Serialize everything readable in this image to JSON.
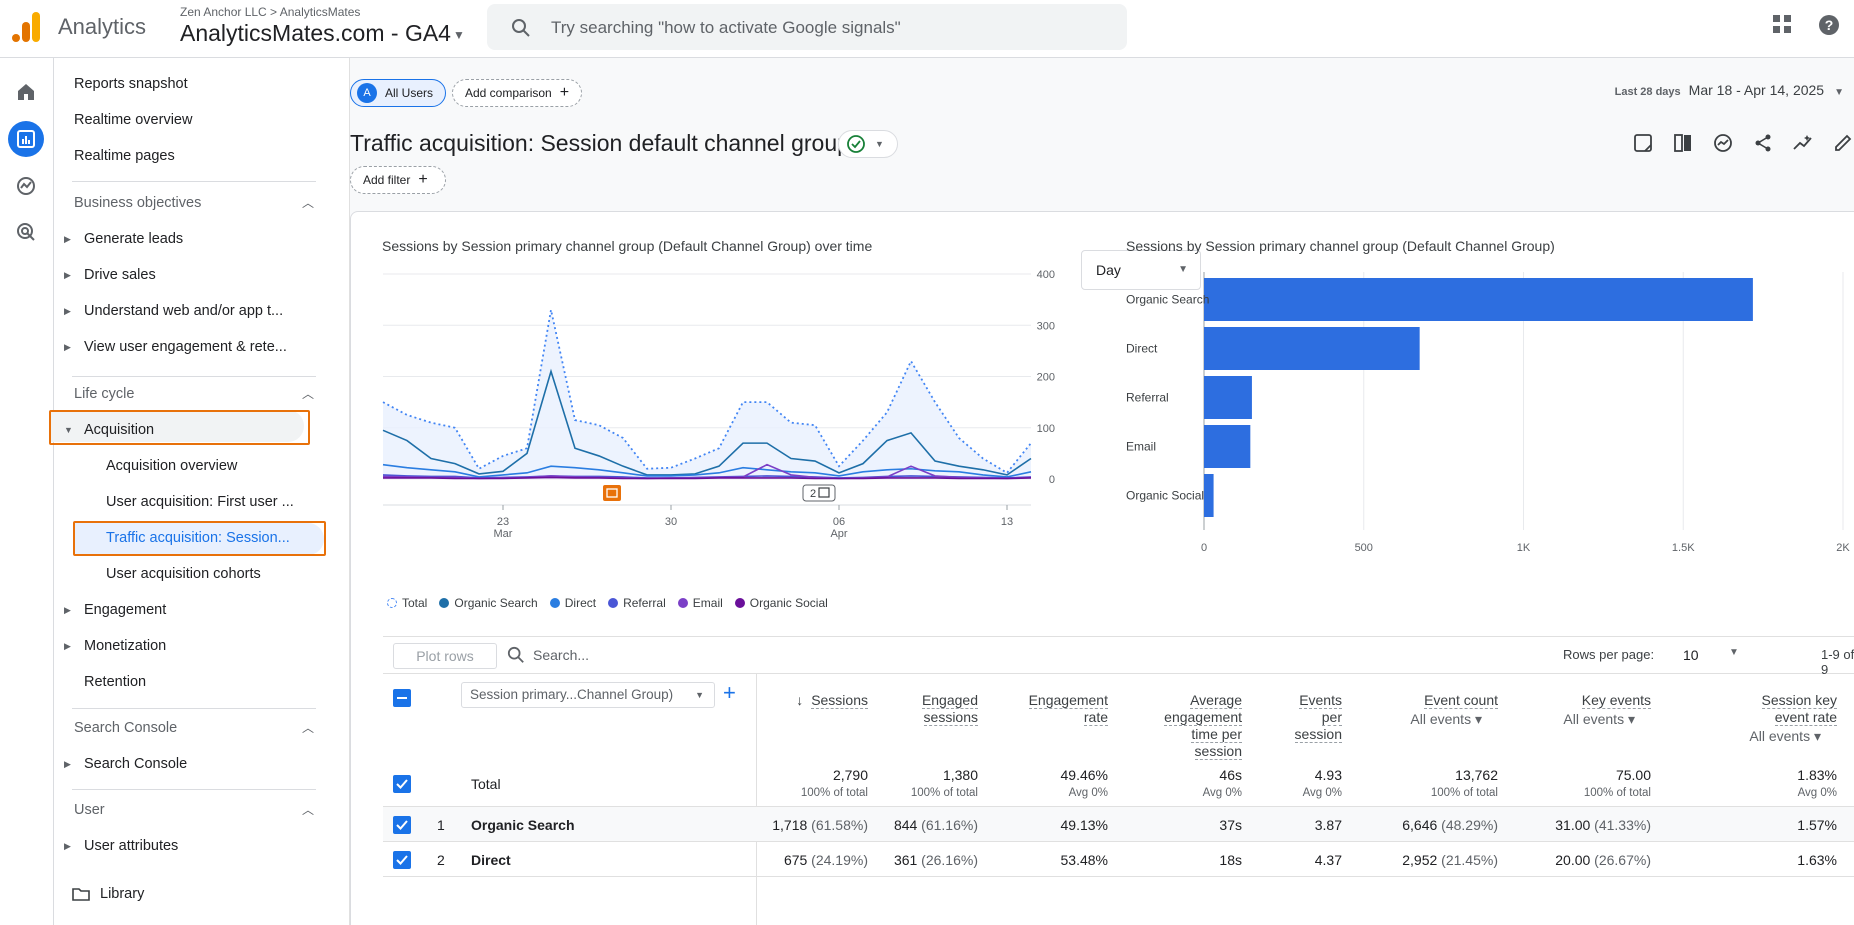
{
  "header": {
    "app_name": "Analytics",
    "account_path": "Zen Anchor LLC > AnalyticsMates",
    "property_name": "AnalyticsMates.com - GA4",
    "search_placeholder": "Try searching \"how to activate Google signals\""
  },
  "nav": {
    "top_items": [
      "Reports snapshot",
      "Realtime overview",
      "Realtime pages"
    ],
    "business_objectives": {
      "label": "Business objectives",
      "items": [
        "Generate leads",
        "Drive sales",
        "Understand web and/or app t...",
        "View user engagement & rete..."
      ]
    },
    "life_cycle": {
      "label": "Life cycle",
      "acquisition": "Acquisition",
      "acquisition_children": [
        "Acquisition overview",
        "User acquisition: First user ...",
        "Traffic acquisition: Session...",
        "User acquisition cohorts"
      ],
      "others": [
        "Engagement",
        "Monetization",
        "Retention"
      ]
    },
    "search_console": {
      "label": "Search Console",
      "items": [
        "Search Console"
      ]
    },
    "user": {
      "label": "User",
      "items": [
        "User attributes"
      ]
    },
    "library": "Library"
  },
  "toolbar": {
    "segment_avatar": "A",
    "segment_label": "All Users",
    "add_comparison": "Add comparison",
    "date_label": "Last 28 days",
    "date_range": "Mar 18 - Apr 14, 2025",
    "page_title": "Traffic acquisition: Session default channel group",
    "add_filter": "Add filter"
  },
  "line_chart": {
    "title": "Sessions by Session primary channel group (Default Channel Group) over time",
    "granularity": "Day",
    "y_ticks": [
      "400",
      "300",
      "200",
      "100",
      "0"
    ],
    "x_ticks": [
      {
        "d": "23",
        "m": "Mar"
      },
      {
        "d": "30",
        "m": ""
      },
      {
        "d": "06",
        "m": "Apr"
      },
      {
        "d": "13",
        "m": ""
      }
    ],
    "annotation_count": "2",
    "legend": [
      "Total",
      "Organic Search",
      "Direct",
      "Referral",
      "Email",
      "Organic Social"
    ]
  },
  "bar_chart": {
    "title": "Sessions by Session primary channel group (Default Channel Group)",
    "x_ticks": [
      "0",
      "500",
      "1K",
      "1.5K",
      "2K"
    ]
  },
  "colors": {
    "total": "#4285f4",
    "organic_search": "#1e6fa8",
    "direct": "#2a7de1",
    "referral": "#4a56d6",
    "email": "#7b3fc7",
    "organic_social": "#6a0f9a",
    "bar": "#2d6ee0",
    "highlight": "#e8710a"
  },
  "chart_data": [
    {
      "type": "line",
      "title": "Sessions by Session primary channel group (Default Channel Group) over time",
      "x": [
        "Mar 18",
        "Mar 19",
        "Mar 20",
        "Mar 21",
        "Mar 22",
        "Mar 23",
        "Mar 24",
        "Mar 25",
        "Mar 26",
        "Mar 27",
        "Mar 28",
        "Mar 29",
        "Mar 30",
        "Mar 31",
        "Apr 1",
        "Apr 2",
        "Apr 3",
        "Apr 4",
        "Apr 5",
        "Apr 6",
        "Apr 7",
        "Apr 8",
        "Apr 9",
        "Apr 10",
        "Apr 11",
        "Apr 12",
        "Apr 13",
        "Apr 14"
      ],
      "ylim": [
        0,
        400
      ],
      "series": [
        {
          "name": "Total",
          "values": [
            150,
            125,
            110,
            100,
            20,
            45,
            60,
            330,
            115,
            105,
            80,
            20,
            22,
            40,
            60,
            150,
            150,
            110,
            105,
            25,
            75,
            130,
            230,
            150,
            80,
            40,
            12,
            70
          ]
        },
        {
          "name": "Organic Search",
          "values": [
            95,
            75,
            40,
            30,
            10,
            15,
            50,
            210,
            60,
            45,
            25,
            8,
            8,
            10,
            25,
            70,
            70,
            40,
            35,
            12,
            30,
            75,
            90,
            35,
            25,
            18,
            8,
            40
          ]
        },
        {
          "name": "Direct",
          "values": [
            28,
            22,
            18,
            14,
            4,
            8,
            12,
            25,
            22,
            18,
            12,
            6,
            6,
            8,
            12,
            22,
            18,
            14,
            12,
            6,
            14,
            18,
            20,
            16,
            14,
            8,
            4,
            14
          ]
        },
        {
          "name": "Referral",
          "values": [
            8,
            6,
            5,
            5,
            2,
            3,
            4,
            6,
            5,
            5,
            4,
            2,
            2,
            3,
            4,
            5,
            6,
            5,
            4,
            2,
            3,
            5,
            6,
            5,
            4,
            3,
            2,
            4
          ]
        },
        {
          "name": "Email",
          "values": [
            5,
            4,
            3,
            3,
            1,
            2,
            3,
            6,
            4,
            3,
            2,
            1,
            2,
            2,
            3,
            4,
            28,
            8,
            3,
            1,
            2,
            4,
            25,
            6,
            3,
            2,
            1,
            3
          ]
        },
        {
          "name": "Organic Social",
          "values": [
            2,
            2,
            2,
            1,
            1,
            1,
            2,
            3,
            2,
            2,
            1,
            1,
            1,
            1,
            2,
            2,
            2,
            2,
            1,
            1,
            1,
            2,
            2,
            2,
            1,
            1,
            1,
            2
          ]
        }
      ]
    },
    {
      "type": "bar",
      "title": "Sessions by Session primary channel group (Default Channel Group)",
      "categories": [
        "Organic Search",
        "Direct",
        "Referral",
        "Email",
        "Organic Social"
      ],
      "values": [
        1718,
        675,
        150,
        145,
        30
      ],
      "xlim": [
        0,
        2000
      ]
    }
  ],
  "table": {
    "plot_rows": "Plot rows",
    "search_placeholder": "Search...",
    "rows_per_page_label": "Rows per page:",
    "rows_per_page": "10",
    "pagination": "1-9 of 9",
    "dimension": "Session primary...Channel Group)",
    "columns": [
      {
        "lines": [
          "Sessions"
        ],
        "sub": ""
      },
      {
        "lines": [
          "Engaged",
          "sessions"
        ],
        "sub": ""
      },
      {
        "lines": [
          "Engagement",
          "rate"
        ],
        "sub": ""
      },
      {
        "lines": [
          "Average",
          "engagement",
          "time per",
          "session"
        ],
        "sub": ""
      },
      {
        "lines": [
          "Events",
          "per",
          "session"
        ],
        "sub": ""
      },
      {
        "lines": [
          "Event count"
        ],
        "sub": "All events"
      },
      {
        "lines": [
          "Key events"
        ],
        "sub": "All events"
      },
      {
        "lines": [
          "Session key",
          "event rate"
        ],
        "sub": "All events"
      }
    ],
    "total": {
      "label": "Total",
      "values": [
        "2,790",
        "1,380",
        "49.46%",
        "46s",
        "4.93",
        "13,762",
        "75.00",
        "1.83%"
      ],
      "subs": [
        "100% of total",
        "100% of total",
        "Avg 0%",
        "Avg 0%",
        "Avg 0%",
        "100% of total",
        "100% of total",
        "Avg 0%"
      ]
    },
    "rows": [
      {
        "idx": "1",
        "name": "Organic Search",
        "values": [
          "1,718",
          "844",
          "49.13%",
          "37s",
          "3.87",
          "6,646",
          "31.00",
          "1.57%"
        ],
        "pcts": [
          "(61.58%)",
          "(61.16%)",
          "",
          "",
          "",
          "(48.29%)",
          "(41.33%)",
          ""
        ]
      },
      {
        "idx": "2",
        "name": "Direct",
        "values": [
          "675",
          "361",
          "53.48%",
          "18s",
          "4.37",
          "2,952",
          "20.00",
          "1.63%"
        ],
        "pcts": [
          "(24.19%)",
          "(26.16%)",
          "",
          "",
          "",
          "(21.45%)",
          "(26.67%)",
          ""
        ]
      }
    ]
  }
}
